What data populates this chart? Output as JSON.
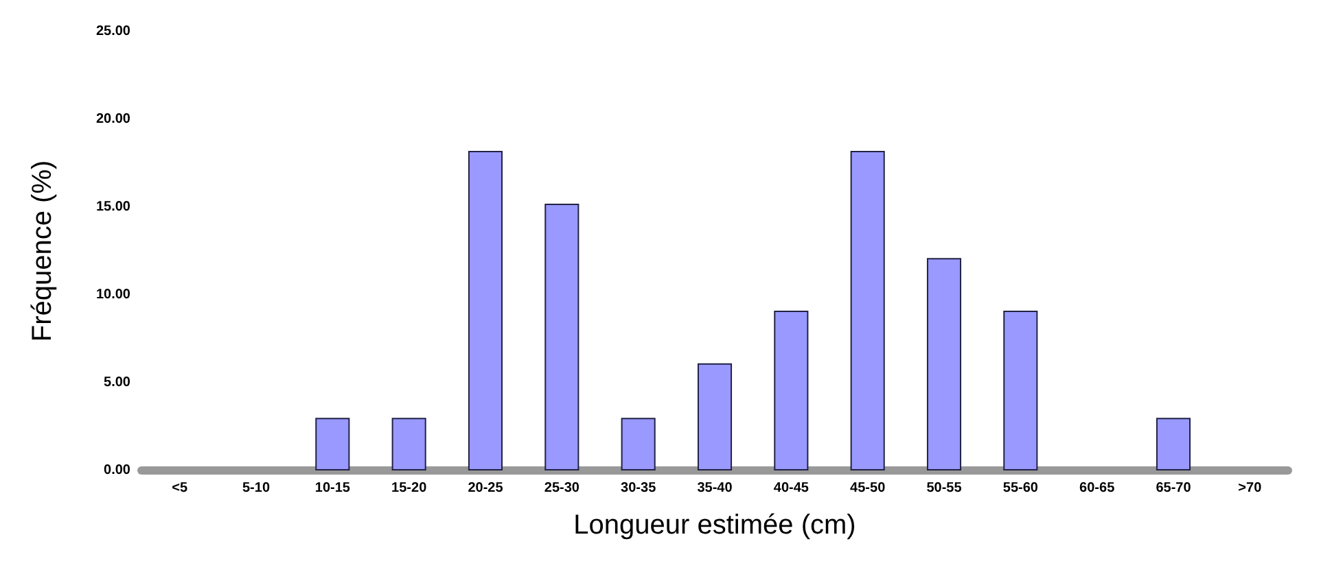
{
  "chart_data": {
    "type": "bar",
    "xlabel": "Longueur estimée (cm)",
    "ylabel": "Fréquence (%)",
    "categories": [
      "<5",
      "5-10",
      "10-15",
      "15-20",
      "20-25",
      "25-30",
      "30-35",
      "35-40",
      "40-45",
      "45-50",
      "50-55",
      "55-60",
      "60-65",
      "65-70",
      ">70"
    ],
    "values": [
      0,
      0,
      3,
      3,
      18.2,
      15.2,
      3,
      6.1,
      9.1,
      18.2,
      12.1,
      9.1,
      0,
      3,
      0
    ],
    "color": "#9999ff",
    "ylim": [
      0,
      25
    ],
    "yticks": [
      {
        "value": 0,
        "label": "0.00"
      },
      {
        "value": 5,
        "label": "5.00"
      },
      {
        "value": 10,
        "label": "10.00"
      },
      {
        "value": 15,
        "label": "15.00"
      },
      {
        "value": 20,
        "label": "20.00"
      },
      {
        "value": 25,
        "label": "25.00"
      }
    ]
  }
}
